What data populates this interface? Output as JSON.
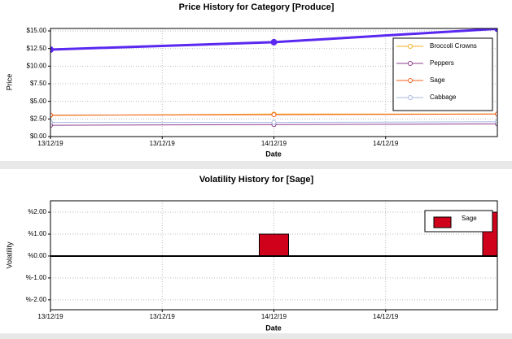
{
  "chart_data": [
    {
      "type": "line",
      "title": "Price History for Category [Produce]",
      "x_label": "Date",
      "y_label": "Price",
      "x": [
        0,
        1,
        2
      ],
      "xlim": [
        0,
        2
      ],
      "xticks": [
        {
          "value": 0,
          "label": "13/12/19"
        },
        {
          "value": 0.5,
          "label": "13/12/19"
        },
        {
          "value": 1,
          "label": "14/12/19"
        },
        {
          "value": 1.5,
          "label": "14/12/19"
        }
      ],
      "ylim": [
        0,
        15.35
      ],
      "yticks": [
        {
          "value": 0,
          "label": "$0.00"
        },
        {
          "value": 2.5,
          "label": "$2.50"
        },
        {
          "value": 5,
          "label": "$5.00"
        },
        {
          "value": 7.5,
          "label": "$7.50"
        },
        {
          "value": 10,
          "label": "$10.00"
        },
        {
          "value": 12.5,
          "label": "$12.50"
        },
        {
          "value": 15,
          "label": "$15.00"
        }
      ],
      "grid": true,
      "legend": "upper right",
      "series": [
        {
          "color": "#5a28f0",
          "line_width": 3,
          "values": [
            12.35,
            13.4,
            15.3
          ]
        },
        {
          "name": "Broccoli Crowns",
          "color": "#f2b01e",
          "line_width": 1,
          "values": [
            3.0,
            3.2,
            3.2
          ]
        },
        {
          "name": "Peppers",
          "color": "#8e3c8e",
          "line_width": 1,
          "values": [
            1.6,
            1.7,
            1.8
          ]
        },
        {
          "name": "Sage",
          "color": "#f0601e",
          "line_width": 1,
          "values": [
            3.05,
            3.1,
            3.2
          ]
        },
        {
          "name": "Cabbage",
          "color": "#a8b8e0",
          "line_width": 1,
          "values": [
            2.0,
            2.0,
            2.1
          ]
        }
      ]
    },
    {
      "type": "bar",
      "title": "Volatility History for [Sage]",
      "x_label": "Date",
      "y_label": "Volatility",
      "x": [
        0,
        1,
        2
      ],
      "xlim": [
        0,
        2
      ],
      "xticks": [
        {
          "value": 0,
          "label": "13/12/19"
        },
        {
          "value": 0.5,
          "label": "13/12/19"
        },
        {
          "value": 1,
          "label": "14/12/19"
        },
        {
          "value": 1.5,
          "label": "14/12/19"
        }
      ],
      "ylim": [
        -2.45,
        2.52
      ],
      "yticks": [
        {
          "value": -2,
          "label": "%-2.00"
        },
        {
          "value": -1,
          "label": "%-1.00"
        },
        {
          "value": 0,
          "label": "%0.00"
        },
        {
          "value": 1,
          "label": "%1.00"
        },
        {
          "value": 2,
          "label": "%2.00"
        }
      ],
      "grid": true,
      "legend": "upper right",
      "series": [
        {
          "name": "Sage",
          "color": "#d0021b",
          "values": [
            0,
            1.0,
            2.0
          ]
        }
      ]
    }
  ]
}
